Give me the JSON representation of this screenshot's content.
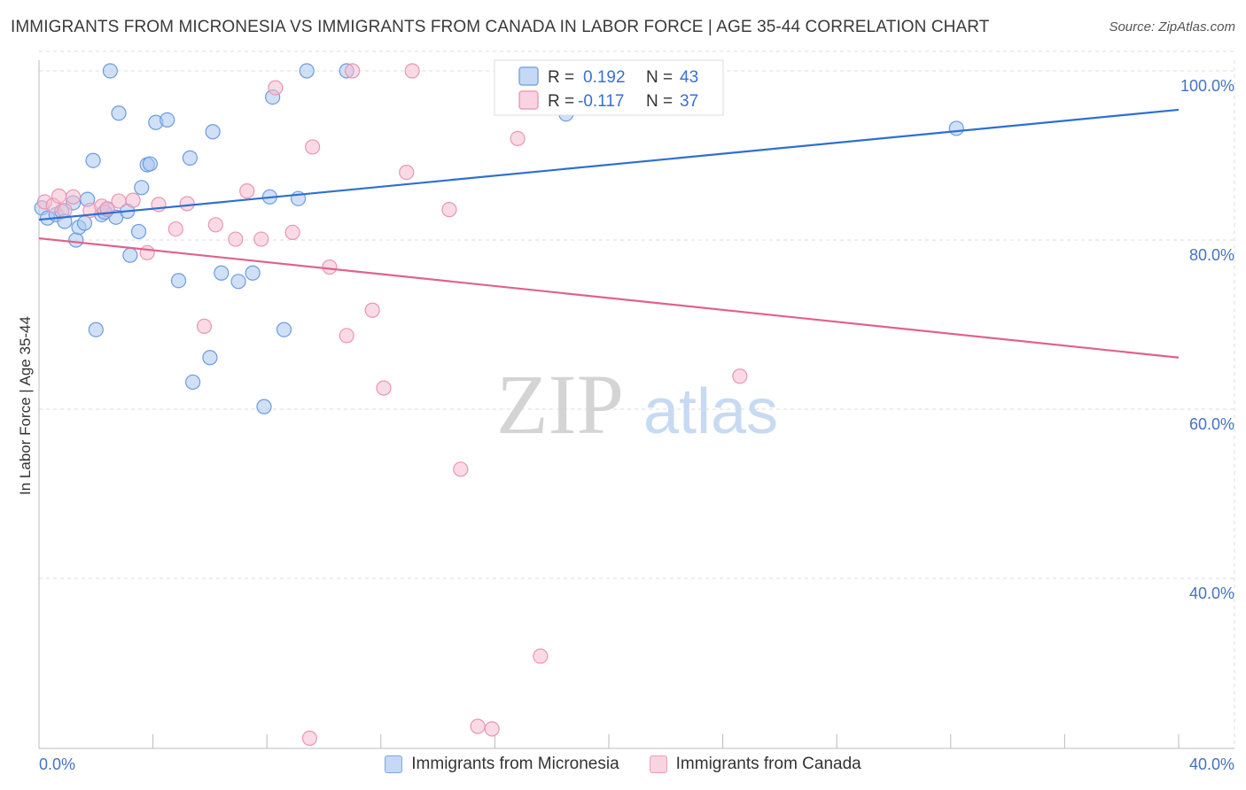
{
  "title": "IMMIGRANTS FROM MICRONESIA VS IMMIGRANTS FROM CANADA IN LABOR FORCE | AGE 35-44 CORRELATION CHART",
  "source": "Source: ZipAtlas.com",
  "watermark": {
    "zip": "ZIP",
    "atlas": "atlas"
  },
  "colors": {
    "blue_fill": "#a9c6f0",
    "blue_stroke": "#6d9be0",
    "blue_line": "#2e6fd1",
    "pink_fill": "#f6bdd0",
    "pink_stroke": "#ec94b2",
    "pink_line": "#e0628c",
    "grid": "#dddddd",
    "tick_text": "#4472c4"
  },
  "legend": {
    "r_label": "R =",
    "n_label": "N =",
    "series": [
      {
        "r": "0.192",
        "n": "43"
      },
      {
        "r": "-0.117",
        "n": "37"
      }
    ]
  },
  "chart_data": {
    "type": "scatter",
    "title": "IMMIGRANTS FROM MICRONESIA VS IMMIGRANTS FROM CANADA IN LABOR FORCE | AGE 35-44 CORRELATION CHART",
    "xlabel": "",
    "ylabel": "In Labor Force | Age 35-44",
    "xlim": [
      0,
      40
    ],
    "ylim": [
      21,
      103
    ],
    "x_tick_labels": [
      "0.0%",
      "40.0%"
    ],
    "y_ticks": [
      100,
      80,
      60,
      40
    ],
    "y_tick_labels": [
      "100.0%",
      "80.0%",
      "60.0%",
      "40.0%"
    ],
    "grid": true,
    "series": [
      {
        "name": "Immigrants from Micronesia",
        "r": 0.192,
        "n": 43,
        "trend": {
          "x": [
            0,
            40
          ],
          "y": [
            82.4,
            95.4
          ]
        },
        "points": [
          {
            "x": 0.1,
            "y": 83.8
          },
          {
            "x": 0.3,
            "y": 82.6
          },
          {
            "x": 0.6,
            "y": 83.0
          },
          {
            "x": 0.8,
            "y": 83.4
          },
          {
            "x": 0.9,
            "y": 82.2
          },
          {
            "x": 1.2,
            "y": 84.4
          },
          {
            "x": 1.3,
            "y": 80.0
          },
          {
            "x": 1.4,
            "y": 81.5
          },
          {
            "x": 1.6,
            "y": 82.0
          },
          {
            "x": 1.7,
            "y": 84.8
          },
          {
            "x": 1.9,
            "y": 89.4
          },
          {
            "x": 2.0,
            "y": 69.4
          },
          {
            "x": 2.2,
            "y": 83.0
          },
          {
            "x": 2.4,
            "y": 83.6
          },
          {
            "x": 2.5,
            "y": 100.0
          },
          {
            "x": 2.7,
            "y": 82.7
          },
          {
            "x": 2.8,
            "y": 95.0
          },
          {
            "x": 3.1,
            "y": 83.4
          },
          {
            "x": 3.2,
            "y": 78.2
          },
          {
            "x": 3.5,
            "y": 81.0
          },
          {
            "x": 3.6,
            "y": 86.2
          },
          {
            "x": 3.8,
            "y": 88.9
          },
          {
            "x": 3.9,
            "y": 89.0
          },
          {
            "x": 4.1,
            "y": 93.9
          },
          {
            "x": 4.5,
            "y": 94.2
          },
          {
            "x": 4.9,
            "y": 75.2
          },
          {
            "x": 5.3,
            "y": 89.7
          },
          {
            "x": 5.4,
            "y": 63.2
          },
          {
            "x": 6.0,
            "y": 66.1
          },
          {
            "x": 6.1,
            "y": 92.8
          },
          {
            "x": 6.4,
            "y": 76.1
          },
          {
            "x": 7.0,
            "y": 75.1
          },
          {
            "x": 7.5,
            "y": 76.1
          },
          {
            "x": 7.9,
            "y": 60.3
          },
          {
            "x": 8.1,
            "y": 85.1
          },
          {
            "x": 8.2,
            "y": 96.9
          },
          {
            "x": 8.6,
            "y": 69.4
          },
          {
            "x": 9.1,
            "y": 84.9
          },
          {
            "x": 9.4,
            "y": 100.0
          },
          {
            "x": 10.8,
            "y": 100.0
          },
          {
            "x": 18.5,
            "y": 94.9
          },
          {
            "x": 32.2,
            "y": 93.2
          },
          {
            "x": 2.3,
            "y": 83.3
          }
        ]
      },
      {
        "name": "Immigrants from Canada",
        "r": -0.117,
        "n": 37,
        "trend": {
          "x": [
            0,
            40
          ],
          "y": [
            80.2,
            66.1
          ]
        },
        "points": [
          {
            "x": 0.2,
            "y": 84.5
          },
          {
            "x": 0.5,
            "y": 84.1
          },
          {
            "x": 0.7,
            "y": 85.2
          },
          {
            "x": 0.9,
            "y": 83.5
          },
          {
            "x": 1.2,
            "y": 85.1
          },
          {
            "x": 1.8,
            "y": 83.5
          },
          {
            "x": 2.2,
            "y": 84.0
          },
          {
            "x": 2.4,
            "y": 83.7
          },
          {
            "x": 2.8,
            "y": 84.6
          },
          {
            "x": 3.3,
            "y": 84.7
          },
          {
            "x": 3.8,
            "y": 78.5
          },
          {
            "x": 4.2,
            "y": 84.2
          },
          {
            "x": 4.8,
            "y": 81.3
          },
          {
            "x": 5.2,
            "y": 84.3
          },
          {
            "x": 5.8,
            "y": 69.8
          },
          {
            "x": 6.2,
            "y": 81.8
          },
          {
            "x": 6.9,
            "y": 80.1
          },
          {
            "x": 7.3,
            "y": 85.8
          },
          {
            "x": 7.8,
            "y": 80.1
          },
          {
            "x": 8.3,
            "y": 98.0
          },
          {
            "x": 8.9,
            "y": 80.9
          },
          {
            "x": 9.5,
            "y": 21.1
          },
          {
            "x": 9.6,
            "y": 91.0
          },
          {
            "x": 10.2,
            "y": 76.8
          },
          {
            "x": 10.8,
            "y": 68.7
          },
          {
            "x": 11.0,
            "y": 100.0
          },
          {
            "x": 11.7,
            "y": 71.7
          },
          {
            "x": 12.1,
            "y": 62.5
          },
          {
            "x": 12.9,
            "y": 88.0
          },
          {
            "x": 13.1,
            "y": 100.0
          },
          {
            "x": 14.4,
            "y": 83.6
          },
          {
            "x": 14.8,
            "y": 52.9
          },
          {
            "x": 15.4,
            "y": 22.5
          },
          {
            "x": 15.9,
            "y": 22.2
          },
          {
            "x": 16.8,
            "y": 92.0
          },
          {
            "x": 17.6,
            "y": 30.8
          },
          {
            "x": 24.6,
            "y": 63.9
          }
        ]
      }
    ],
    "extra_points_note": ""
  },
  "bottom_legend": [
    "Immigrants from Micronesia",
    "Immigrants from Canada"
  ]
}
